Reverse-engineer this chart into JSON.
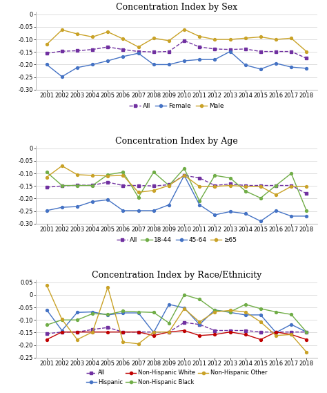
{
  "years": [
    2001,
    2002,
    2003,
    2004,
    2005,
    2006,
    2007,
    2008,
    2009,
    2010,
    2011,
    2012,
    2013,
    2014,
    2015,
    2016,
    2017,
    2018
  ],
  "sex": {
    "All": [
      -0.155,
      -0.147,
      -0.145,
      -0.14,
      -0.13,
      -0.14,
      -0.148,
      -0.15,
      -0.148,
      -0.105,
      -0.13,
      -0.138,
      -0.14,
      -0.138,
      -0.148,
      -0.148,
      -0.148,
      -0.175
    ],
    "Female": [
      -0.2,
      -0.248,
      -0.212,
      -0.2,
      -0.185,
      -0.168,
      -0.155,
      -0.2,
      -0.2,
      -0.185,
      -0.18,
      -0.18,
      -0.148,
      -0.202,
      -0.218,
      -0.195,
      -0.21,
      -0.215
    ],
    "Male": [
      -0.12,
      -0.062,
      -0.078,
      -0.09,
      -0.07,
      -0.098,
      -0.13,
      -0.095,
      -0.105,
      -0.06,
      -0.088,
      -0.1,
      -0.1,
      -0.095,
      -0.09,
      -0.1,
      -0.095,
      -0.148
    ]
  },
  "age": {
    "All": [
      -0.155,
      -0.15,
      -0.147,
      -0.147,
      -0.135,
      -0.148,
      -0.148,
      -0.15,
      -0.145,
      -0.108,
      -0.118,
      -0.148,
      -0.142,
      -0.148,
      -0.148,
      -0.148,
      -0.148,
      -0.18
    ],
    "18-44": [
      -0.095,
      -0.148,
      -0.148,
      -0.148,
      -0.105,
      -0.095,
      -0.195,
      -0.095,
      -0.148,
      -0.08,
      -0.21,
      -0.108,
      -0.118,
      -0.17,
      -0.198,
      -0.148,
      -0.1,
      -0.248
    ],
    "45-64": [
      -0.248,
      -0.235,
      -0.232,
      -0.212,
      -0.205,
      -0.248,
      -0.248,
      -0.248,
      -0.225,
      -0.108,
      -0.225,
      -0.265,
      -0.252,
      -0.26,
      -0.29,
      -0.248,
      -0.27,
      -0.27
    ],
    ">=65": [
      -0.115,
      -0.07,
      -0.105,
      -0.108,
      -0.11,
      -0.108,
      -0.175,
      -0.168,
      -0.148,
      -0.108,
      -0.152,
      -0.152,
      -0.148,
      -0.152,
      -0.152,
      -0.185,
      -0.152,
      -0.152
    ]
  },
  "race": {
    "All": [
      -0.155,
      -0.148,
      -0.148,
      -0.138,
      -0.13,
      -0.148,
      -0.148,
      -0.148,
      -0.148,
      -0.11,
      -0.118,
      -0.142,
      -0.142,
      -0.142,
      -0.148,
      -0.148,
      -0.148,
      -0.148
    ],
    "Hispanic": [
      -0.06,
      -0.142,
      -0.07,
      -0.068,
      -0.08,
      -0.072,
      -0.072,
      -0.15,
      -0.038,
      -0.052,
      -0.118,
      -0.06,
      -0.07,
      -0.08,
      -0.08,
      -0.15,
      -0.118,
      -0.148
    ],
    "Non-Hispanic White": [
      -0.178,
      -0.148,
      -0.148,
      -0.148,
      -0.148,
      -0.148,
      -0.148,
      -0.162,
      -0.148,
      -0.142,
      -0.162,
      -0.158,
      -0.148,
      -0.158,
      -0.178,
      -0.148,
      -0.158,
      -0.178
    ],
    "Non-Hispanic Black": [
      -0.12,
      -0.1,
      -0.1,
      -0.075,
      -0.078,
      -0.065,
      -0.068,
      -0.07,
      -0.112,
      -0.0,
      -0.018,
      -0.062,
      -0.068,
      -0.038,
      -0.055,
      -0.068,
      -0.078,
      -0.148
    ],
    "Non-Hispanic Other": [
      0.038,
      -0.098,
      -0.178,
      -0.148,
      0.03,
      -0.188,
      -0.195,
      -0.148,
      -0.148,
      -0.055,
      -0.108,
      -0.068,
      -0.062,
      -0.068,
      -0.108,
      -0.162,
      -0.158,
      -0.228
    ]
  },
  "sex_ylim": [
    -0.3,
    0.01
  ],
  "age_ylim": [
    -0.3,
    0.01
  ],
  "race_ylim": [
    -0.25,
    0.06
  ],
  "sex_yticks": [
    0,
    -0.05,
    -0.1,
    -0.15,
    -0.2,
    -0.25,
    -0.3
  ],
  "age_yticks": [
    0,
    -0.05,
    -0.1,
    -0.15,
    -0.2,
    -0.25,
    -0.3
  ],
  "race_yticks": [
    0.05,
    0.0,
    -0.05,
    -0.1,
    -0.15,
    -0.2,
    -0.25
  ],
  "colors": {
    "All": "#7030a0",
    "Female": "#4472c4",
    "Male": "#c9a227",
    "18-44": "#70ad47",
    "45-64": "#4472c4",
    ">=65": "#c9a227",
    "Hispanic": "#4472c4",
    "Non-Hispanic White": "#c00000",
    "Non-Hispanic Black": "#70ad47",
    "Non-Hispanic Other": "#c9a227"
  },
  "title_sex": "Concentration Index by Sex",
  "title_age": "Concentration Index by Age",
  "title_race": "Concentration Index by Race/Ethnicity",
  "title_fontsize": 9,
  "tick_fontsize": 6,
  "legend_fontsize": 6.5
}
